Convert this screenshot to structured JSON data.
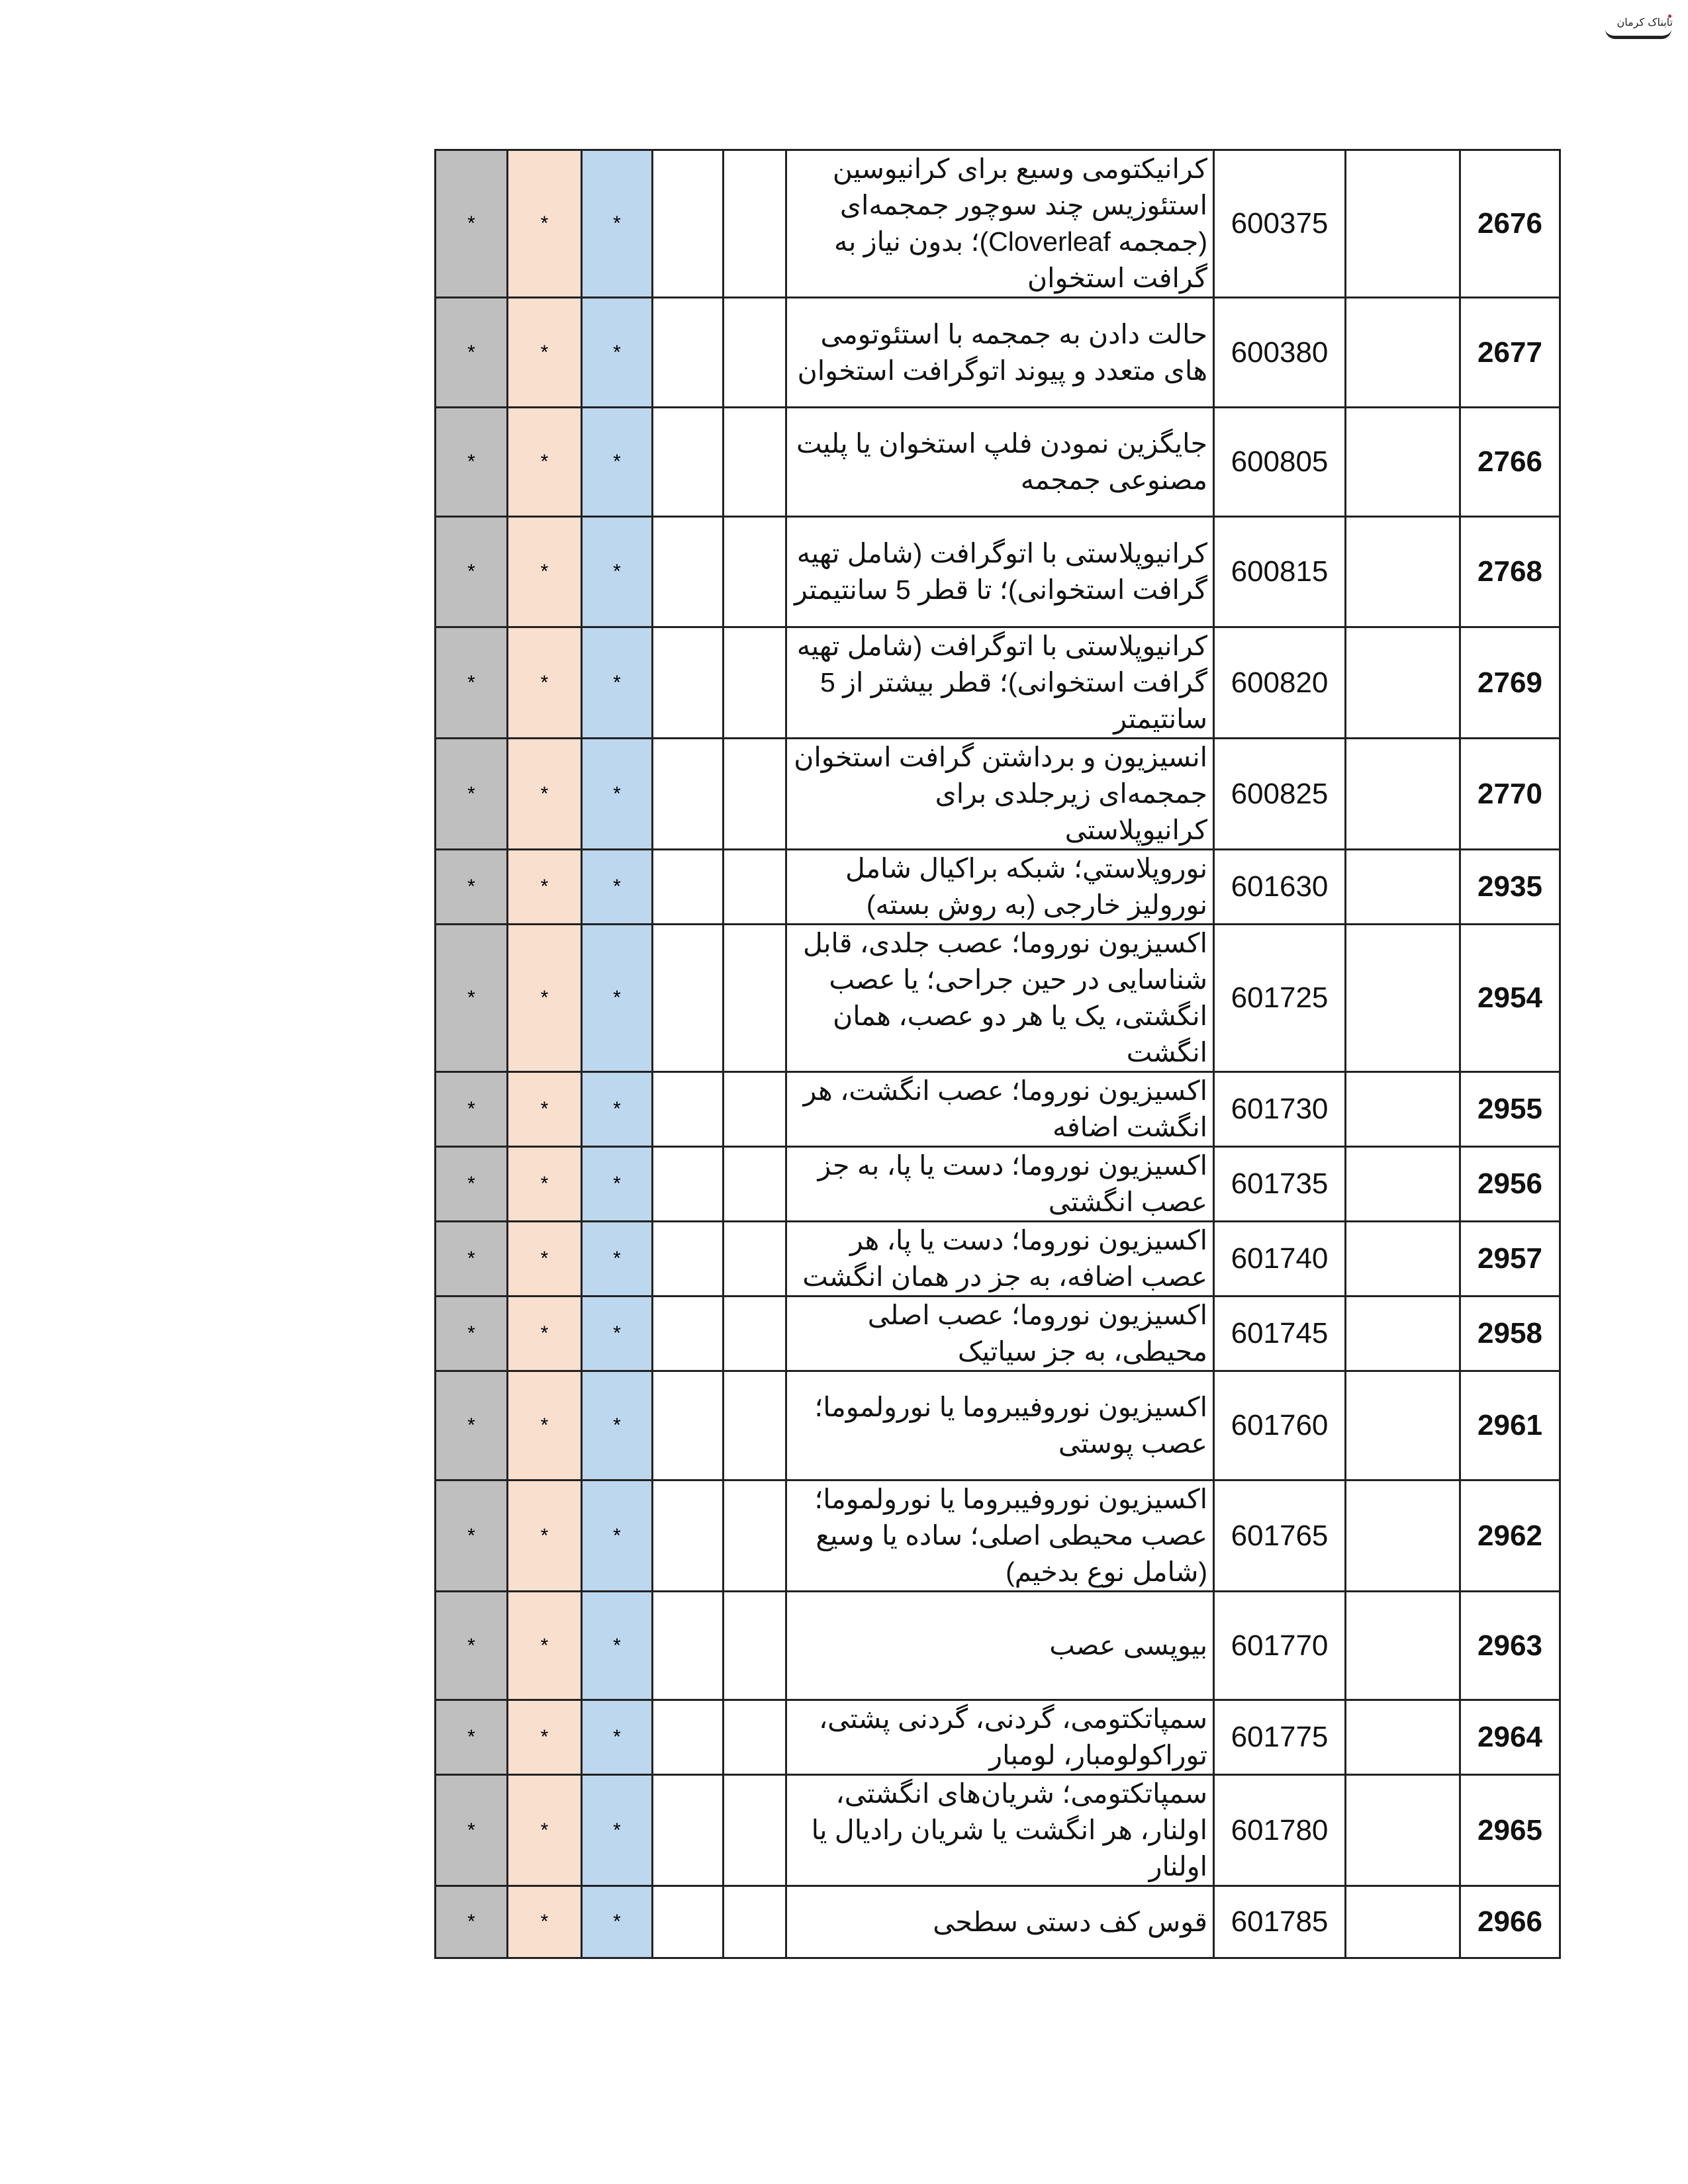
{
  "logo": {
    "text": "تابناک کرمان"
  },
  "colors": {
    "col_gray": "#bfbfbf",
    "col_peach": "#f9dfce",
    "col_blue": "#bdd7ee"
  },
  "rows": [
    {
      "num": "2676",
      "code": "600375",
      "desc": "کرانیکتومی وسیع برای کرانیوسین استئوزیس چند سوچور جمجمه‌ای (جمجمه Cloverleaf)؛ بدون نیاز به گرافت استخوان",
      "marks": [
        "*",
        "*",
        "*"
      ]
    },
    {
      "num": "2677",
      "code": "600380",
      "desc": "حالت دادن به جمجمه با استئوتومی های متعدد و پیوند اتوگرافت استخوان",
      "marks": [
        "*",
        "*",
        "*"
      ]
    },
    {
      "num": "2766",
      "code": "600805",
      "desc": "جایگزین نمودن فلپ استخوان یا پلیت مصنوعی جمجمه",
      "marks": [
        "*",
        "*",
        "*"
      ]
    },
    {
      "num": "2768",
      "code": "600815",
      "desc": "کرانیوپلاستی با اتوگرافت (شامل تهیه گرافت استخوانی)؛ تا قطر 5 سانتیمتر",
      "marks": [
        "*",
        "*",
        "*"
      ]
    },
    {
      "num": "2769",
      "code": "600820",
      "desc": "کرانیوپلاستی با اتوگرافت (شامل تهیه گرافت استخوانی)؛ قطر بیشتر از 5 سانتیمتر",
      "marks": [
        "*",
        "*",
        "*"
      ]
    },
    {
      "num": "2770",
      "code": "600825",
      "desc": "انسیزیون و برداشتن گرافت استخوان جمجمه‌ای زیرجلدی برای کرانیوپلاستی",
      "marks": [
        "*",
        "*",
        "*"
      ]
    },
    {
      "num": "2935",
      "code": "601630",
      "desc": "نوروپلاستي؛ شبکه براکیال شامل نورولیز خارجی (به روش بسته)",
      "marks": [
        "*",
        "*",
        "*"
      ]
    },
    {
      "num": "2954",
      "code": "601725",
      "desc": "اکسیزیون نوروما؛ عصب جلدی، قابل شناسایی در حین جراحی؛ یا عصب انگشتی، یک یا هر دو عصب، همان انگشت",
      "marks": [
        "*",
        "*",
        "*"
      ]
    },
    {
      "num": "2955",
      "code": "601730",
      "desc": "اکسیزیون نوروما؛ عصب انگشت، هر انگشت اضافه",
      "marks": [
        "*",
        "*",
        "*"
      ]
    },
    {
      "num": "2956",
      "code": "601735",
      "desc": "اکسیزیون نوروما؛ دست یا پا، به جز عصب انگشتی",
      "marks": [
        "*",
        "*",
        "*"
      ]
    },
    {
      "num": "2957",
      "code": "601740",
      "desc": "اکسیزیون نوروما؛ دست یا پا، هر عصب اضافه، به جز در همان انگشت",
      "marks": [
        "*",
        "*",
        "*"
      ]
    },
    {
      "num": "2958",
      "code": "601745",
      "desc": "اکسیزیون نوروما؛ عصب اصلی محیطی، به جز سیاتیک",
      "marks": [
        "*",
        "*",
        "*"
      ]
    },
    {
      "num": "2961",
      "code": "601760",
      "desc": "اکسیزیون نوروفیبروما یا نورولموما؛ عصب پوستی",
      "marks": [
        "*",
        "*",
        "*"
      ]
    },
    {
      "num": "2962",
      "code": "601765",
      "desc": "اکسیزیون نوروفیبروما یا نورولموما؛ عصب محیطی اصلی؛ ساده یا وسیع (شامل نوع بدخیم)",
      "marks": [
        "*",
        "*",
        "*"
      ]
    },
    {
      "num": "2963",
      "code": "601770",
      "desc": "بیوپسی عصب",
      "marks": [
        "*",
        "*",
        "*"
      ]
    },
    {
      "num": "2964",
      "code": "601775",
      "desc": "سمپاتکتومی، گردنی، گردنی پشتی، توراکولومبار، لومبار",
      "marks": [
        "*",
        "*",
        "*"
      ]
    },
    {
      "num": "2965",
      "code": "601780",
      "desc": "سمپاتکتومی؛ شریان‌های انگشتی، اولنار، هر انگشت یا شریان رادیال یا اولنار",
      "marks": [
        "*",
        "*",
        "*"
      ]
    },
    {
      "num": "2966",
      "code": "601785",
      "desc": "قوس کف دستی سطحی",
      "marks": [
        "*",
        "*",
        "*"
      ]
    }
  ]
}
